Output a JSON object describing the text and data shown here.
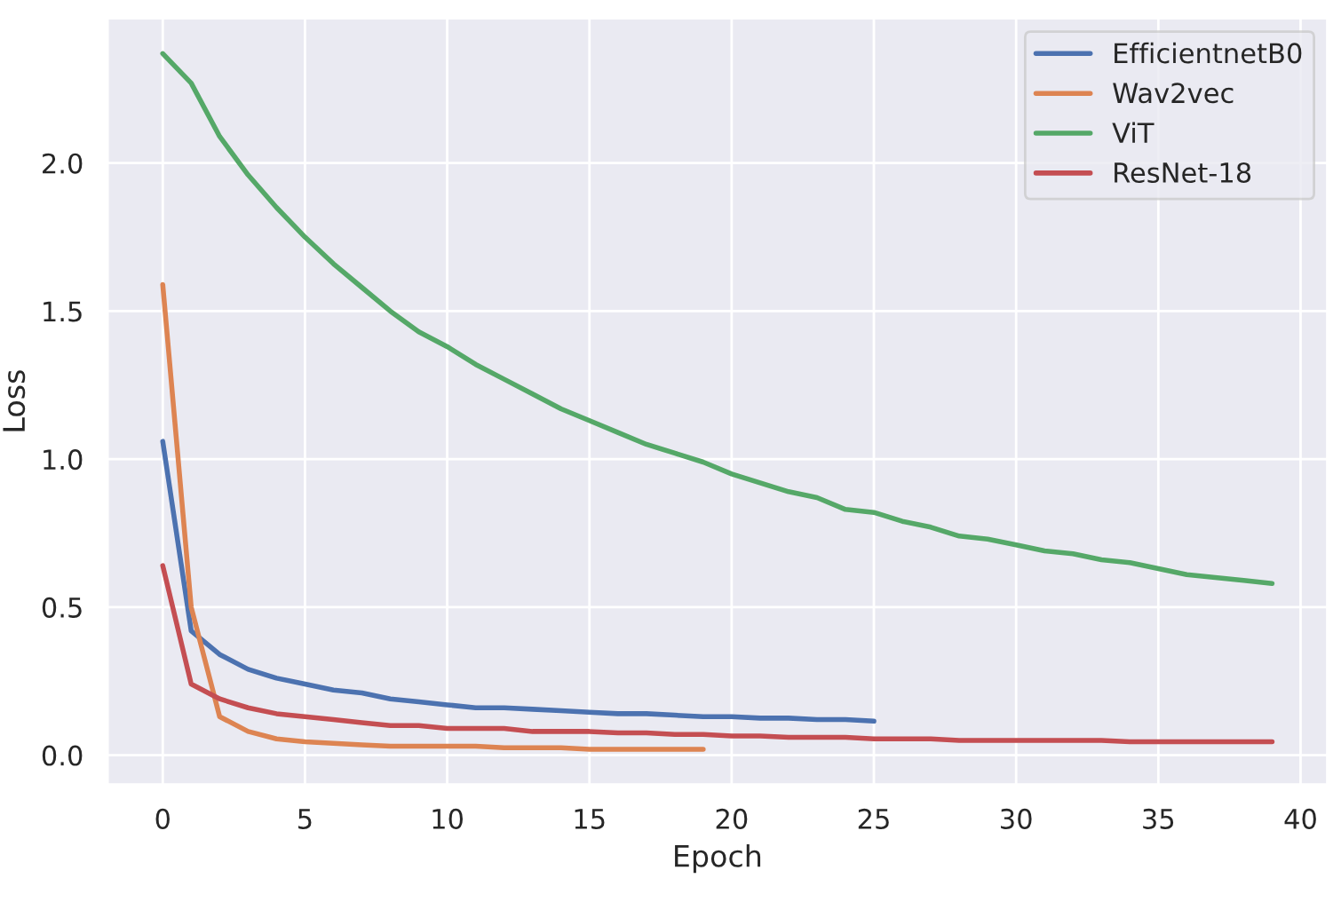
{
  "chart_data": {
    "type": "line",
    "xlabel": "Epoch",
    "ylabel": "Loss",
    "xlim": [
      -1.95,
      40.95
    ],
    "xticks": [
      0,
      5,
      10,
      15,
      20,
      25,
      30,
      35,
      40
    ],
    "ylim": [
      -0.1,
      2.49
    ],
    "yticks": [
      {
        "value": 0,
        "label": "0.0"
      },
      0.5,
      {
        "value": 1,
        "label": "1.0"
      },
      1.5,
      {
        "value": 2,
        "label": "2.0"
      }
    ],
    "grid": true,
    "legend": "top right",
    "line_style": "solid",
    "series": [
      {
        "name": "EfficientnetB0",
        "color": "#4c72b0",
        "x": [
          0,
          1,
          2,
          3,
          4,
          5,
          6,
          7,
          8,
          9,
          10,
          11,
          12,
          13,
          14,
          15,
          16,
          17,
          18,
          19,
          20,
          21,
          22,
          23,
          24,
          25
        ],
        "values": [
          1.06,
          0.42,
          0.34,
          0.29,
          0.26,
          0.24,
          0.22,
          0.21,
          0.19,
          0.18,
          0.17,
          0.16,
          0.16,
          0.155,
          0.15,
          0.145,
          0.14,
          0.14,
          0.135,
          0.13,
          0.13,
          0.125,
          0.125,
          0.12,
          0.12,
          0.115
        ]
      },
      {
        "name": "Wav2vec",
        "color": "#dd8452",
        "x": [
          0,
          1,
          2,
          3,
          4,
          5,
          6,
          7,
          8,
          9,
          10,
          11,
          12,
          13,
          14,
          15,
          16,
          17,
          18,
          19
        ],
        "values": [
          1.59,
          0.5,
          0.13,
          0.08,
          0.055,
          0.045,
          0.04,
          0.035,
          0.03,
          0.03,
          0.03,
          0.03,
          0.025,
          0.025,
          0.025,
          0.02,
          0.02,
          0.02,
          0.02,
          0.02
        ]
      },
      {
        "name": "ViT",
        "color": "#55a868",
        "x": [
          0,
          1,
          2,
          3,
          4,
          5,
          6,
          7,
          8,
          9,
          10,
          11,
          12,
          13,
          14,
          15,
          16,
          17,
          18,
          19,
          20,
          21,
          22,
          23,
          24,
          25,
          26,
          27,
          28,
          29,
          30,
          31,
          32,
          33,
          34,
          35,
          36,
          37,
          38,
          39
        ],
        "values": [
          2.37,
          2.27,
          2.09,
          1.96,
          1.85,
          1.75,
          1.66,
          1.58,
          1.5,
          1.43,
          1.38,
          1.32,
          1.27,
          1.22,
          1.17,
          1.13,
          1.09,
          1.05,
          1.02,
          0.99,
          0.95,
          0.92,
          0.89,
          0.87,
          0.83,
          0.82,
          0.79,
          0.77,
          0.74,
          0.73,
          0.71,
          0.69,
          0.68,
          0.66,
          0.65,
          0.63,
          0.61,
          0.6,
          0.59,
          0.58
        ]
      },
      {
        "name": "ResNet-18",
        "color": "#c44e52",
        "x": [
          0,
          1,
          2,
          3,
          4,
          5,
          6,
          7,
          8,
          9,
          10,
          11,
          12,
          13,
          14,
          15,
          16,
          17,
          18,
          19,
          20,
          21,
          22,
          23,
          24,
          25,
          26,
          27,
          28,
          29,
          30,
          31,
          32,
          33,
          34,
          35,
          36,
          37,
          38,
          39
        ],
        "values": [
          0.64,
          0.24,
          0.19,
          0.16,
          0.14,
          0.13,
          0.12,
          0.11,
          0.1,
          0.1,
          0.09,
          0.09,
          0.09,
          0.08,
          0.08,
          0.08,
          0.075,
          0.075,
          0.07,
          0.07,
          0.065,
          0.065,
          0.06,
          0.06,
          0.06,
          0.055,
          0.055,
          0.055,
          0.05,
          0.05,
          0.05,
          0.05,
          0.05,
          0.05,
          0.045,
          0.045,
          0.045,
          0.045,
          0.045,
          0.045
        ]
      }
    ]
  }
}
